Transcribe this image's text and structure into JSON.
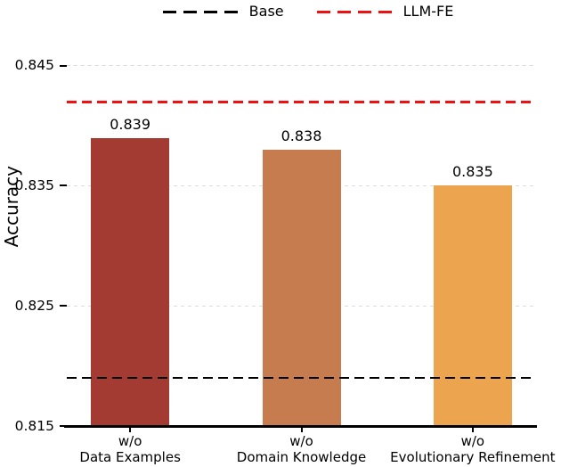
{
  "legend": {
    "items": [
      {
        "label": "Base",
        "color": "#000000"
      },
      {
        "label": "LLM-FE",
        "color": "#ee1111"
      }
    ]
  },
  "chart_data": {
    "type": "bar",
    "title": "",
    "ylabel": "Accuracy",
    "xlabel": "",
    "categories": [
      "w/o\nData Examples",
      "w/o\nDomain Knowledge",
      "w/o\nEvolutionary Refinement"
    ],
    "values": [
      0.839,
      0.838,
      0.835
    ],
    "value_labels": [
      "0.839",
      "0.838",
      "0.835"
    ],
    "bar_colors": [
      "#a33b32",
      "#c77c4f",
      "#eca44f"
    ],
    "ylim": [
      0.815,
      0.8475
    ],
    "yticks": [
      0.815,
      0.825,
      0.835,
      0.845
    ],
    "grid": true,
    "gridline_color": "#dcdcdc",
    "legend_position": "top",
    "reference_lines": [
      {
        "label": "Base",
        "value": 0.819,
        "color": "#000000",
        "style": "dashed"
      },
      {
        "label": "LLM-FE",
        "value": 0.842,
        "color": "#ee1111",
        "style": "dashed"
      }
    ]
  }
}
